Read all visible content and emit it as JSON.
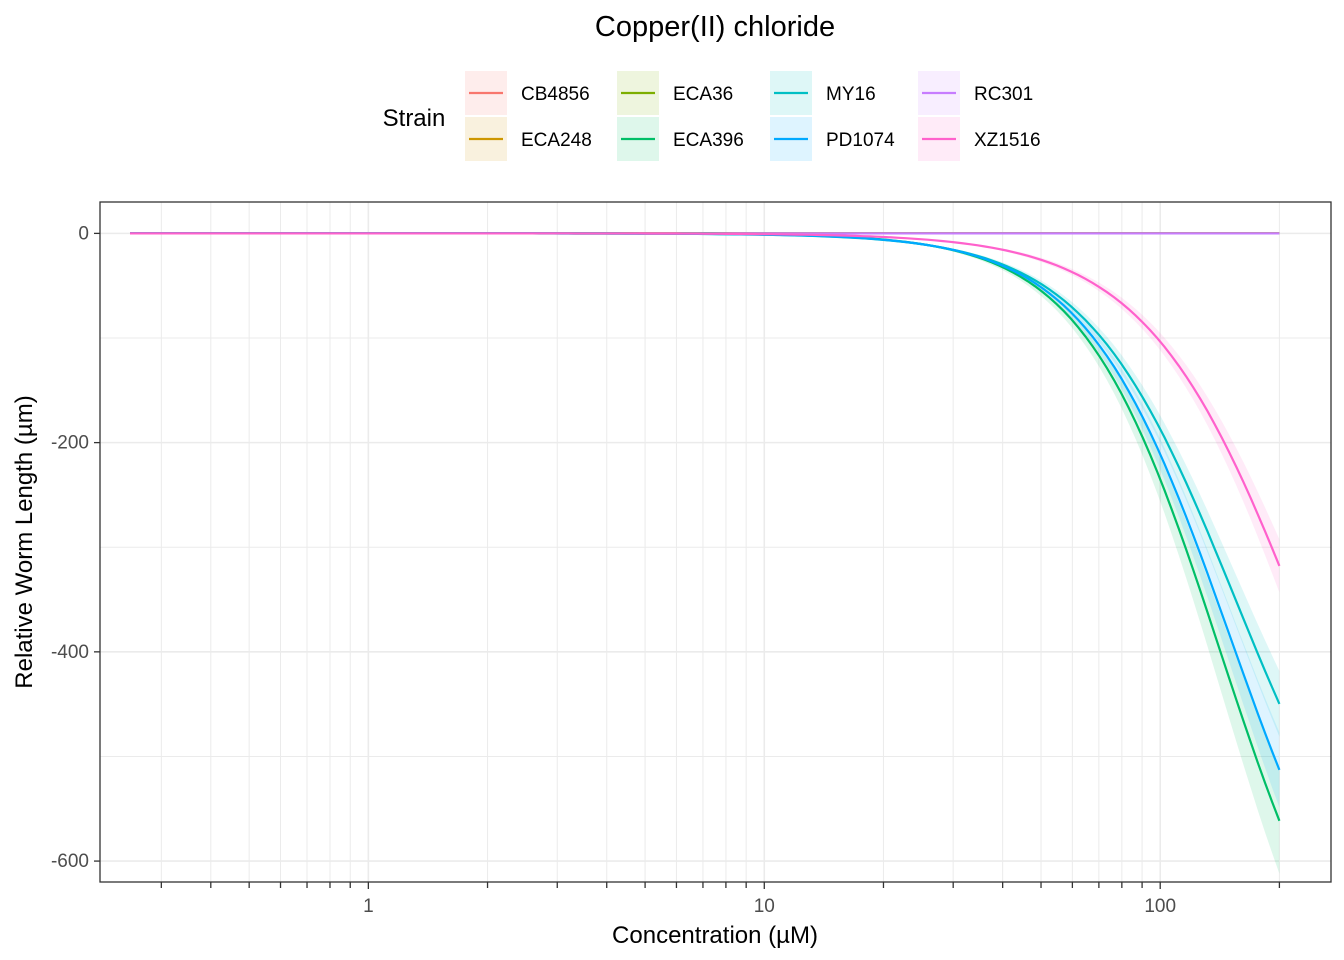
{
  "chart_data": {
    "type": "line",
    "title": "Copper(II) chloride",
    "xlabel": "Concentration (µM)",
    "ylabel": "Relative Worm Length (µm)",
    "x_scale": "log10",
    "xlim": [
      0.21,
      270
    ],
    "ylim": [
      -620,
      30
    ],
    "x_ticks": [
      {
        "value": 1,
        "label": "1"
      },
      {
        "value": 10,
        "label": "10"
      },
      {
        "value": 100,
        "label": "100"
      }
    ],
    "y_ticks": [
      {
        "value": 0,
        "label": "0"
      },
      {
        "value": -200,
        "label": "-200"
      },
      {
        "value": -400,
        "label": "-400"
      },
      {
        "value": -600,
        "label": "-600"
      }
    ],
    "legend": {
      "title": "Strain",
      "position": "top",
      "entries": [
        "CB4856",
        "ECA248",
        "ECA36",
        "ECA396",
        "MY16",
        "PD1074",
        "RC301",
        "XZ1516"
      ]
    },
    "series": [
      {
        "name": "CB4856",
        "color": "#F8766D",
        "x_min": 0.25,
        "x_max": 200,
        "ec50": 1000000,
        "hill": 1,
        "bottom": 0,
        "ci": 0
      },
      {
        "name": "ECA248",
        "color": "#CD9600",
        "x_min": 0.25,
        "x_max": 200,
        "ec50": 1000000,
        "hill": 1,
        "bottom": 0,
        "ci": 0
      },
      {
        "name": "ECA36",
        "color": "#7CAE00",
        "x_min": 0.25,
        "x_max": 200,
        "ec50": 1000000,
        "hill": 1,
        "bottom": 0,
        "ci": 0
      },
      {
        "name": "ECA396",
        "color": "#00BE67",
        "x_min": 0.25,
        "x_max": 200,
        "ec50": 142,
        "hill": 2.5,
        "bottom": -800,
        "ci": 0.09
      },
      {
        "name": "MY16",
        "color": "#00BFC4",
        "x_min": 0.25,
        "x_max": 200,
        "ec50": 155,
        "hill": 2.3,
        "bottom": -700,
        "ci": 0.07
      },
      {
        "name": "PD1074",
        "color": "#00A9FF",
        "x_min": 0.25,
        "x_max": 200,
        "ec50": 150,
        "hill": 2.4,
        "bottom": -770,
        "ci": 0.07
      },
      {
        "name": "RC301",
        "color": "#C77CFF",
        "x_min": 0.25,
        "x_max": 200,
        "ec50": 1000000,
        "hill": 1,
        "bottom": 0,
        "ci": 0
      },
      {
        "name": "XZ1516",
        "color": "#FF61CC",
        "x_min": 0.25,
        "x_max": 200,
        "ec50": 230,
        "hill": 2.2,
        "bottom": -750,
        "ci": 0.08
      }
    ]
  }
}
